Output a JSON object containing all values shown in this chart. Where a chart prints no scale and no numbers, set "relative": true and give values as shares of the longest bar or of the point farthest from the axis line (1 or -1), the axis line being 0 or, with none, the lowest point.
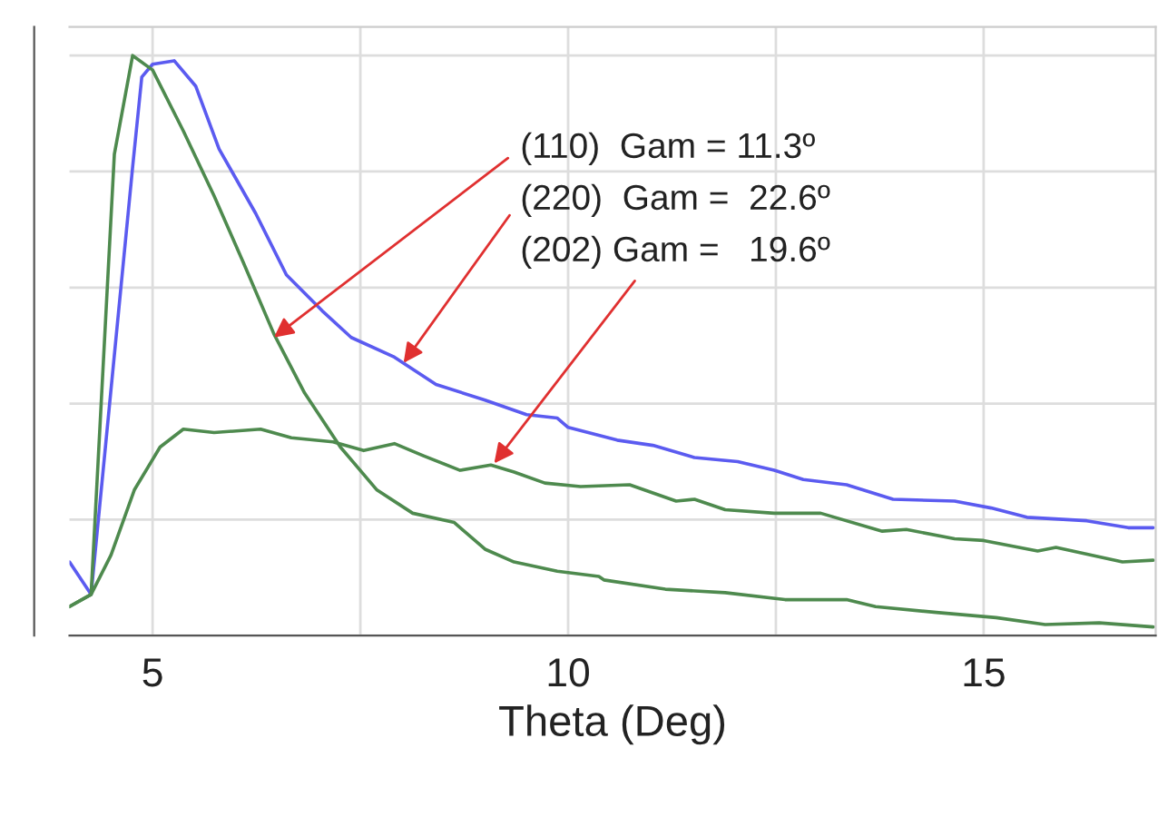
{
  "chart_data": {
    "type": "line",
    "xlabel": "Theta (Deg)",
    "relative": true,
    "tick_labels": "x",
    "grid": true,
    "legend": false,
    "line_style": "solid",
    "marker": "none",
    "xlim": [
      4.0,
      17.07
    ],
    "xticks": [
      5,
      {
        "value": 7.5,
        "label": null
      },
      10,
      {
        "value": 12.5,
        "label": null
      },
      15
    ],
    "annotations": [
      {
        "text": "(110)  Gam = 11.3º",
        "x": 6.46,
        "y": 0.514
      },
      {
        "text": "(220)  Gam =  22.6º",
        "x": 8.02,
        "y": 0.47
      },
      {
        "text": "(202) Gam =   19.6º",
        "x": 9.11,
        "y": 0.297
      }
    ],
    "series": [
      {
        "color": "#5b5bf0",
        "x": [
          4.0,
          4.26,
          4.76,
          4.87,
          5.0,
          5.26,
          5.52,
          5.8,
          6.24,
          6.61,
          7.04,
          7.39,
          7.91,
          8.41,
          9.0,
          9.5,
          9.87,
          10.0,
          10.59,
          11.02,
          11.52,
          12.04,
          12.48,
          12.83,
          13.35,
          13.91,
          14.65,
          15.09,
          15.52,
          16.24,
          16.74,
          17.04
        ],
        "values": [
          0.127,
          0.071,
          0.808,
          0.963,
          0.985,
          0.991,
          0.947,
          0.839,
          0.728,
          0.622,
          0.56,
          0.514,
          0.48,
          0.433,
          0.406,
          0.381,
          0.375,
          0.359,
          0.337,
          0.328,
          0.307,
          0.3,
          0.285,
          0.269,
          0.26,
          0.235,
          0.232,
          0.22,
          0.204,
          0.198,
          0.186,
          0.186
        ]
      },
      {
        "color": "#4e8a4e",
        "x": [
          4.0,
          4.26,
          4.54,
          4.76,
          5.0,
          5.37,
          5.74,
          6.09,
          6.46,
          6.83,
          7.26,
          7.7,
          8.13,
          8.63,
          9.0,
          9.35,
          9.87,
          10.37,
          10.43,
          11.17,
          11.89,
          12.61,
          13.35,
          13.7,
          14.43,
          15.15,
          15.74,
          16.39,
          17.04
        ],
        "values": [
          0.05,
          0.071,
          0.83,
          1.0,
          0.975,
          0.87,
          0.758,
          0.644,
          0.52,
          0.418,
          0.325,
          0.251,
          0.211,
          0.195,
          0.149,
          0.127,
          0.111,
          0.102,
          0.096,
          0.08,
          0.074,
          0.062,
          0.062,
          0.05,
          0.04,
          0.031,
          0.019,
          0.022,
          0.015
        ]
      },
      {
        "color": "#4e8a4e",
        "x": [
          4.0,
          4.26,
          4.5,
          4.78,
          5.09,
          5.37,
          5.74,
          6.3,
          6.67,
          7.17,
          7.54,
          7.91,
          8.26,
          8.7,
          9.07,
          9.35,
          9.72,
          10.15,
          10.74,
          11.3,
          11.52,
          11.89,
          12.48,
          13.04,
          13.78,
          14.07,
          14.65,
          15.0,
          15.65,
          15.87,
          16.67,
          17.04
        ],
        "values": [
          0.05,
          0.071,
          0.139,
          0.251,
          0.325,
          0.356,
          0.35,
          0.356,
          0.341,
          0.334,
          0.319,
          0.331,
          0.31,
          0.285,
          0.294,
          0.282,
          0.263,
          0.257,
          0.26,
          0.232,
          0.235,
          0.217,
          0.211,
          0.211,
          0.18,
          0.183,
          0.167,
          0.164,
          0.146,
          0.152,
          0.127,
          0.13
        ]
      }
    ]
  }
}
